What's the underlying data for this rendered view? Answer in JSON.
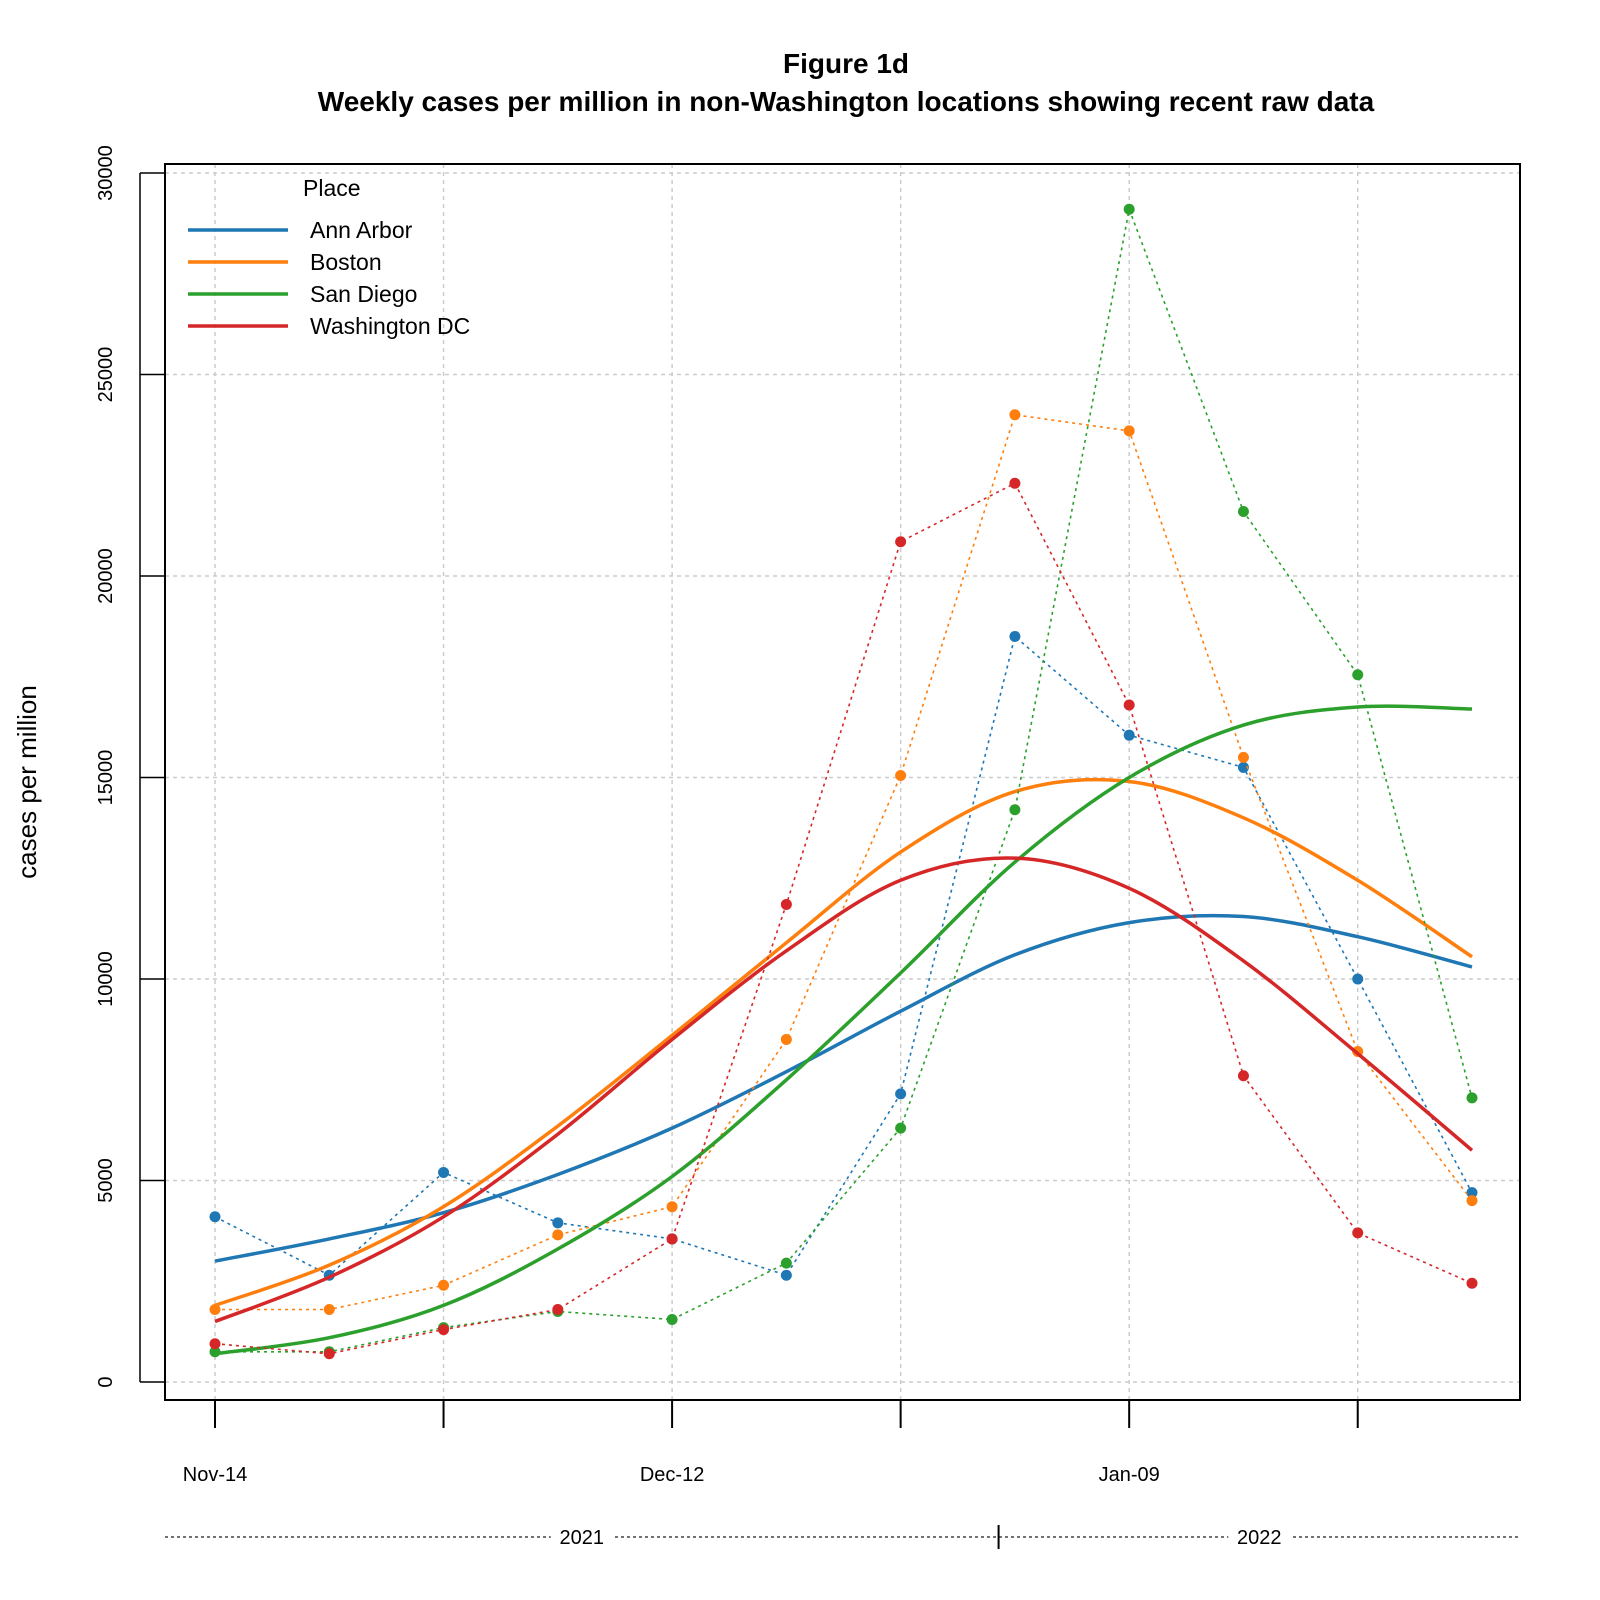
{
  "chart_data": {
    "type": "line",
    "title": "Figure 1d",
    "subtitle": "Weekly cases per million in non-Washington locations showing recent raw data",
    "ylabel": "cases per million",
    "xlabel": "",
    "ylim": [
      0,
      30000
    ],
    "yticks": [
      0,
      5000,
      10000,
      15000,
      20000,
      25000,
      30000
    ],
    "x": [
      "2021-11-14",
      "2021-11-21",
      "2021-11-28",
      "2021-12-05",
      "2021-12-12",
      "2021-12-19",
      "2021-12-26",
      "2022-01-02",
      "2022-01-09",
      "2022-01-16",
      "2022-01-23",
      "2022-01-30"
    ],
    "xtick_labels": [
      {
        "date": "2021-11-14",
        "label": "Nov-14"
      },
      {
        "date": "2021-12-12",
        "label": "Dec-12"
      },
      {
        "date": "2022-01-09",
        "label": "Jan-09"
      }
    ],
    "year_labels": [
      "2021",
      "2022"
    ],
    "grid": true,
    "legend": {
      "title": "Place",
      "position": "top-left"
    },
    "series": [
      {
        "name": "Ann Arbor",
        "color": "#1f77b4",
        "raw": [
          4100,
          2650,
          5200,
          3950,
          3550,
          2650,
          7150,
          18500,
          16050,
          15250,
          10000,
          4700
        ],
        "smooth": [
          3000,
          3550,
          4200,
          5150,
          6300,
          7700,
          9200,
          10600,
          11400,
          11550,
          11050,
          10300
        ]
      },
      {
        "name": "Boston",
        "color": "#ff7f0e",
        "raw": [
          1800,
          1800,
          2400,
          3650,
          4350,
          8500,
          15050,
          24000,
          23600,
          15500,
          8200,
          4500
        ],
        "smooth": [
          1900,
          2900,
          4350,
          6350,
          8600,
          10900,
          13150,
          14650,
          14900,
          14000,
          12450,
          10550
        ]
      },
      {
        "name": "San Diego",
        "color": "#2ca02c",
        "raw": [
          750,
          750,
          1350,
          1750,
          1550,
          2950,
          6300,
          14200,
          29100,
          21600,
          17550,
          7050
        ],
        "smooth": [
          700,
          1100,
          1900,
          3300,
          5100,
          7500,
          10150,
          12900,
          15000,
          16300,
          16750,
          16700
        ]
      },
      {
        "name": "Washington DC",
        "color": "#d62728",
        "raw": [
          950,
          700,
          1300,
          1800,
          3550,
          11850,
          20850,
          22300,
          16800,
          7600,
          3700,
          2450
        ],
        "smooth": [
          1500,
          2600,
          4100,
          6150,
          8500,
          10700,
          12450,
          13000,
          12250,
          10450,
          8150,
          5750
        ]
      }
    ]
  }
}
